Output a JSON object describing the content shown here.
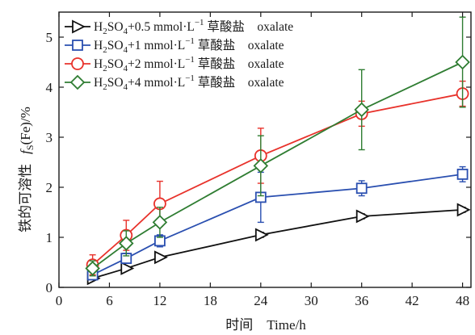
{
  "chart_data": {
    "type": "line",
    "xlabel": "时间　Time/h",
    "ylabel_main": "铁的可溶性",
    "ylabel_symbol": "f",
    "ylabel_subscript": "S",
    "ylabel_unit": "(Fe)/%",
    "xlim": [
      0,
      49
    ],
    "ylim": [
      0,
      5.5
    ],
    "x_ticks": [
      0,
      6,
      12,
      18,
      24,
      30,
      36,
      42,
      48
    ],
    "y_ticks": [
      0,
      1,
      2,
      3,
      4,
      5
    ],
    "grid": false,
    "legend_position": "top-left",
    "x": [
      4,
      8,
      12,
      24,
      36,
      48
    ],
    "series": [
      {
        "legend": {
          "pre": "H",
          "sub1": "2",
          "mid": "SO",
          "sub2": "4",
          "post": "+0.5 mmol·L",
          "sup": "−1",
          "tail": " 草酸盐　oxalate"
        },
        "marker": "triangle-right",
        "color": "#111111",
        "values": [
          0.18,
          0.38,
          0.6,
          1.05,
          1.42,
          1.55
        ],
        "errors": [
          0.03,
          0.03,
          0.03,
          0.05,
          0.05,
          0.05
        ]
      },
      {
        "legend": {
          "pre": "H",
          "sub1": "2",
          "mid": "SO",
          "sub2": "4",
          "post": "+1 mmol·L",
          "sup": "−1",
          "tail": " 草酸盐　oxalate"
        },
        "marker": "square",
        "color": "#2a4fb0",
        "values": [
          0.25,
          0.58,
          0.93,
          1.8,
          1.98,
          2.26
        ],
        "errors": [
          0.05,
          0.1,
          0.12,
          0.5,
          0.15,
          0.15
        ]
      },
      {
        "legend": {
          "pre": "H",
          "sub1": "2",
          "mid": "SO",
          "sub2": "4",
          "post": "+2 mmol·L",
          "sup": "−1",
          "tail": " 草酸盐　oxalate"
        },
        "marker": "circle",
        "color": "#e8322b",
        "values": [
          0.45,
          1.04,
          1.67,
          2.63,
          3.47,
          3.87
        ],
        "errors": [
          0.2,
          0.3,
          0.45,
          0.55,
          0.25,
          0.25
        ]
      },
      {
        "legend": {
          "pre": "H",
          "sub1": "2",
          "mid": "SO",
          "sub2": "4",
          "post": "+4 mmol·L",
          "sup": "−1",
          "tail": " 草酸盐　oxalate"
        },
        "marker": "diamond",
        "color": "#2f7d32",
        "values": [
          0.38,
          0.88,
          1.3,
          2.43,
          3.55,
          4.5
        ],
        "errors": [
          0.15,
          0.25,
          0.3,
          0.6,
          0.8,
          0.9
        ]
      }
    ]
  }
}
